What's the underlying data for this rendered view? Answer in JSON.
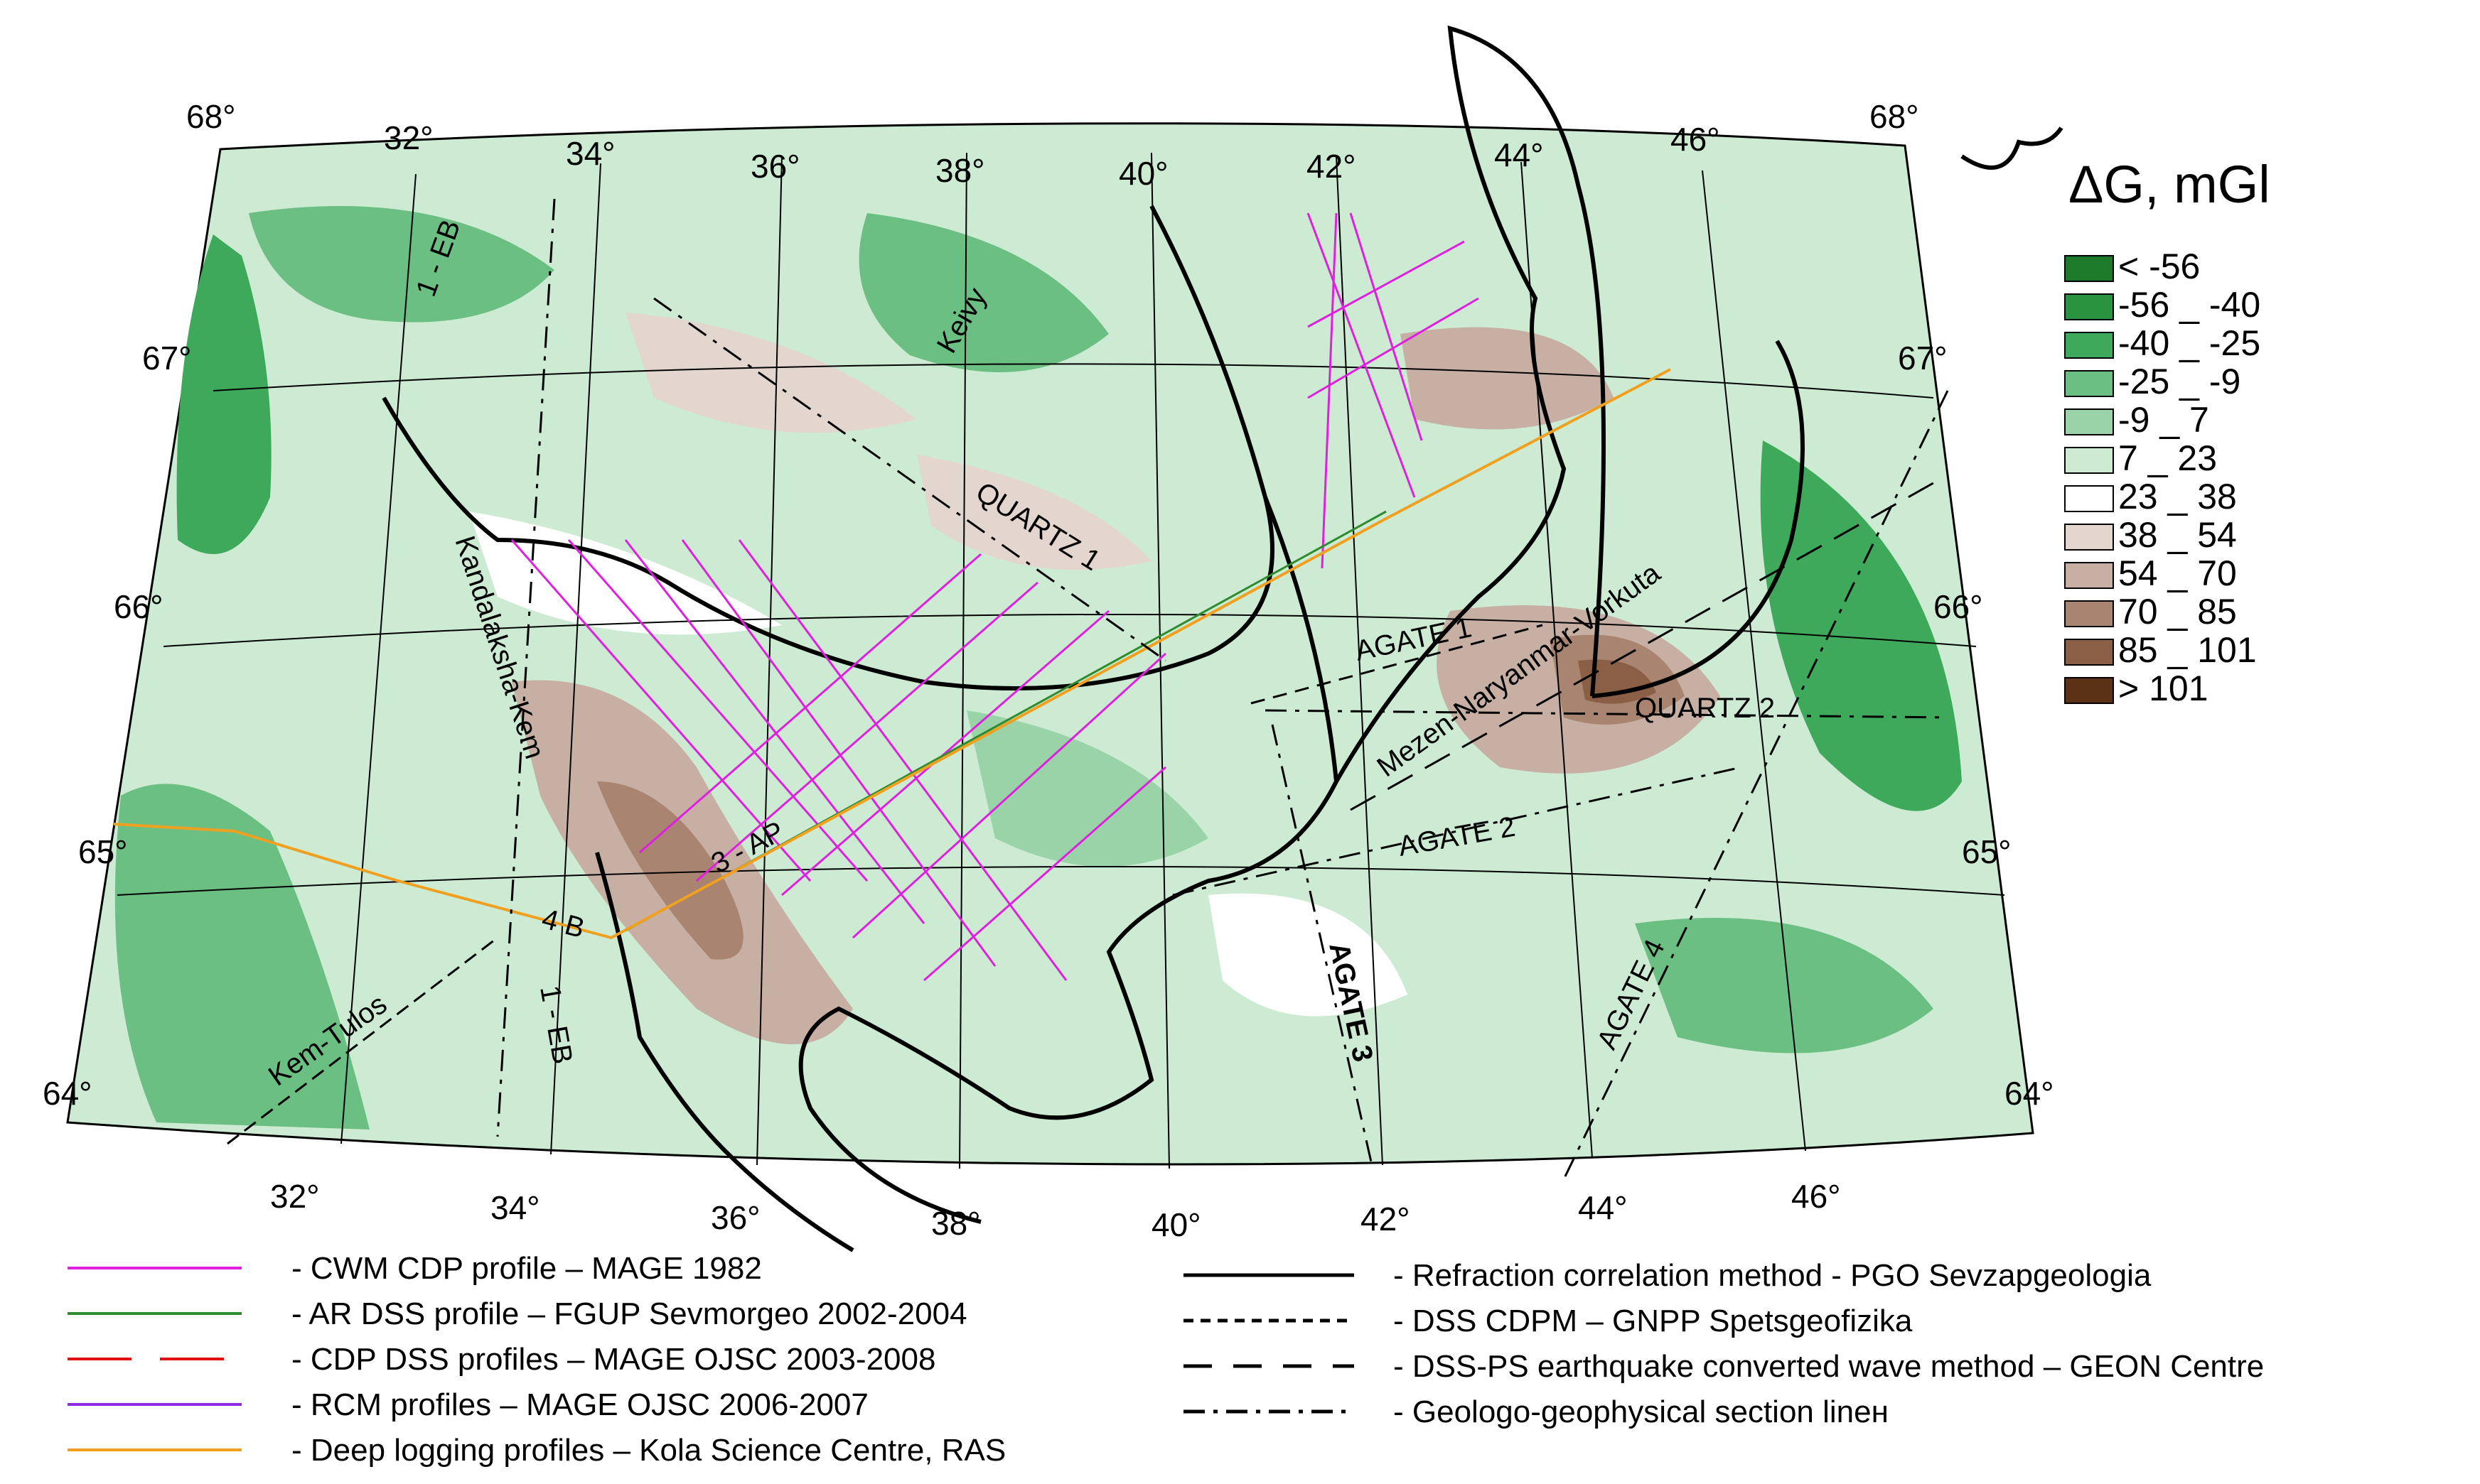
{
  "legend": {
    "title": "ΔG, mGl",
    "classes": [
      {
        "label": "< -56",
        "color": "#1d7a2a"
      },
      {
        "label": "-56 _ -40",
        "color": "#2a9340"
      },
      {
        "label": "-40 _ -25",
        "color": "#3ea95a"
      },
      {
        "label": "-25 _ -9",
        "color": "#6cbf82"
      },
      {
        "label": "-9 _ 7",
        "color": "#9ad3a8"
      },
      {
        "label": "7 _ 23",
        "color": "#cdebd3"
      },
      {
        "label": "23 _ 38",
        "color": "#ffffff"
      },
      {
        "label": "38 _ 54",
        "color": "#e2d6cf"
      },
      {
        "label": "54 _ 70",
        "color": "#c7b0a3"
      },
      {
        "label": "70 _ 85",
        "color": "#a88471"
      },
      {
        "label": "85 _ 101",
        "color": "#8a5f45"
      },
      {
        "label": "> 101",
        "color": "#5c3217"
      }
    ]
  },
  "profile_legend": {
    "left": [
      {
        "label": "- CWM CDP profile – MAGE 1982",
        "color": "#e020e0",
        "style": "solid"
      },
      {
        "label": "- AR DSS profile – FGUP Sevmorgeo 2002-2004",
        "color": "#2e8b2e",
        "style": "solid"
      },
      {
        "label": "- CDP DSS profiles – MAGE OJSC 2003-2008",
        "color": "#e01010",
        "style": "dashed"
      },
      {
        "label": "- RCM profiles – MAGE OJSC 2006-2007",
        "color": "#8a2be2",
        "style": "solid"
      },
      {
        "label": "- Deep logging profiles – Kola Science Centre, RAS",
        "color": "#f0a020",
        "style": "solid"
      }
    ],
    "right": [
      {
        "label": "- Refraction correlation method - PGO Sevzapgeologia",
        "color": "#000000",
        "style": "solid"
      },
      {
        "label": "- DSS CDPM – GNPP Spetsgeofizika",
        "color": "#000000",
        "style": "dotted"
      },
      {
        "label": "- DSS-PS earthquake converted wave method – GEON Centre",
        "color": "#000000",
        "style": "longdash"
      },
      {
        "label": "- Geologo-geophysical section linен",
        "color": "#000000",
        "style": "dashdot"
      }
    ]
  },
  "graticule": {
    "top_lon": [
      "68°",
      "32°",
      "34°",
      "36°",
      "38°",
      "40°",
      "42°",
      "44°",
      "46°",
      "68°"
    ],
    "bottom_lon": [
      "32°",
      "34°",
      "36°",
      "38°",
      "40°",
      "42°",
      "44°",
      "46°"
    ],
    "left_lat": [
      "67°",
      "66°",
      "65°",
      "64°"
    ],
    "right_lat": [
      "67°",
      "66°",
      "65°",
      "64°"
    ]
  },
  "profile_labels": [
    "1 - EB",
    "Keivy",
    "QUARTZ 1",
    "Kandalaksha-Kem",
    "AGATE 1",
    "Mezen-Naryanmar-Vorkuta",
    "QUARTZ 2",
    "AGATE 2",
    "3 - AP",
    "4 B",
    "Kem-Tulos",
    "1 - EB",
    "AGATE 3",
    "AGATE 4"
  ]
}
